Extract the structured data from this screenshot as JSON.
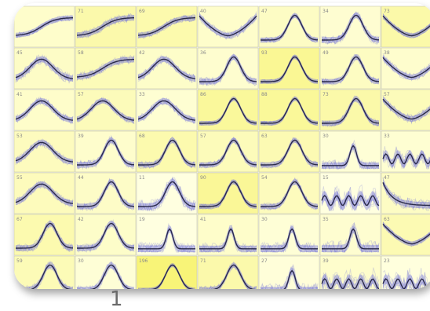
{
  "caption": "1",
  "colors": {
    "yellow_low": "#ffffe0",
    "yellow_high": "#f8f478",
    "curve": "#2a2a4a",
    "band": "#5a5ae0"
  },
  "chart_data": {
    "type": "small-multiples-line",
    "rows": 7,
    "cols": 7,
    "panels": [
      {
        "n": "",
        "shape": "rise",
        "noise": 0.2
      },
      {
        "n": "71",
        "shape": "rise",
        "noise": 0.3
      },
      {
        "n": "69",
        "shape": "rise",
        "noise": 0.25
      },
      {
        "n": "40",
        "shape": "valley",
        "noise": 0.3
      },
      {
        "n": "47",
        "shape": "peak",
        "noise": 0.2
      },
      {
        "n": "34",
        "shape": "peak",
        "noise": 0.3
      },
      {
        "n": "73",
        "shape": "valley",
        "noise": 0.2
      },
      {
        "n": "45",
        "shape": "hump",
        "noise": 0.35
      },
      {
        "n": "58",
        "shape": "rise",
        "noise": 0.3
      },
      {
        "n": "42",
        "shape": "hump",
        "noise": 0.3
      },
      {
        "n": "36",
        "shape": "peak",
        "noise": 0.3
      },
      {
        "n": "93",
        "shape": "peak",
        "noise": 0.15
      },
      {
        "n": "49",
        "shape": "peak",
        "noise": 0.25
      },
      {
        "n": "38",
        "shape": "valley",
        "noise": 0.3
      },
      {
        "n": "41",
        "shape": "hump",
        "noise": 0.3
      },
      {
        "n": "57",
        "shape": "hump",
        "noise": 0.25
      },
      {
        "n": "33",
        "shape": "hump",
        "noise": 0.3
      },
      {
        "n": "86",
        "shape": "peak",
        "noise": 0.15
      },
      {
        "n": "88",
        "shape": "peak",
        "noise": 0.15
      },
      {
        "n": "73",
        "shape": "peak",
        "noise": 0.25
      },
      {
        "n": "57",
        "shape": "valley",
        "noise": 0.3
      },
      {
        "n": "53",
        "shape": "hump",
        "noise": 0.3
      },
      {
        "n": "39",
        "shape": "peak",
        "noise": 0.3
      },
      {
        "n": "68",
        "shape": "peak",
        "noise": 0.25
      },
      {
        "n": "57",
        "shape": "peak",
        "noise": 0.25
      },
      {
        "n": "63",
        "shape": "peak",
        "noise": 0.25
      },
      {
        "n": "30",
        "shape": "spike",
        "noise": 0.4
      },
      {
        "n": "33",
        "shape": "noise",
        "noise": 0.6
      },
      {
        "n": "55",
        "shape": "hump",
        "noise": 0.3
      },
      {
        "n": "44",
        "shape": "peak",
        "noise": 0.3
      },
      {
        "n": "11",
        "shape": "peak",
        "noise": 0.45
      },
      {
        "n": "90",
        "shape": "peak",
        "noise": 0.2
      },
      {
        "n": "54",
        "shape": "peak",
        "noise": 0.25
      },
      {
        "n": "15",
        "shape": "noise",
        "noise": 0.8
      },
      {
        "n": "47",
        "shape": "decay",
        "noise": 0.4
      },
      {
        "n": "67",
        "shape": "peak",
        "noise": 0.3
      },
      {
        "n": "42",
        "shape": "peak",
        "noise": 0.3
      },
      {
        "n": "19",
        "shape": "spike",
        "noise": 0.45
      },
      {
        "n": "41",
        "shape": "spike",
        "noise": 0.4
      },
      {
        "n": "30",
        "shape": "spike",
        "noise": 0.45
      },
      {
        "n": "35",
        "shape": "spike",
        "noise": 0.55
      },
      {
        "n": "63",
        "shape": "valley",
        "noise": 0.2
      },
      {
        "n": "59",
        "shape": "peak",
        "noise": 0.3
      },
      {
        "n": "30",
        "shape": "peak",
        "noise": 0.3
      },
      {
        "n": "196",
        "shape": "peak",
        "noise": 0.1
      },
      {
        "n": "71",
        "shape": "peak",
        "noise": 0.25
      },
      {
        "n": "27",
        "shape": "spike",
        "noise": 0.5
      },
      {
        "n": "39",
        "shape": "noise",
        "noise": 0.8
      },
      {
        "n": "23",
        "shape": "noise",
        "noise": 0.8
      }
    ]
  }
}
